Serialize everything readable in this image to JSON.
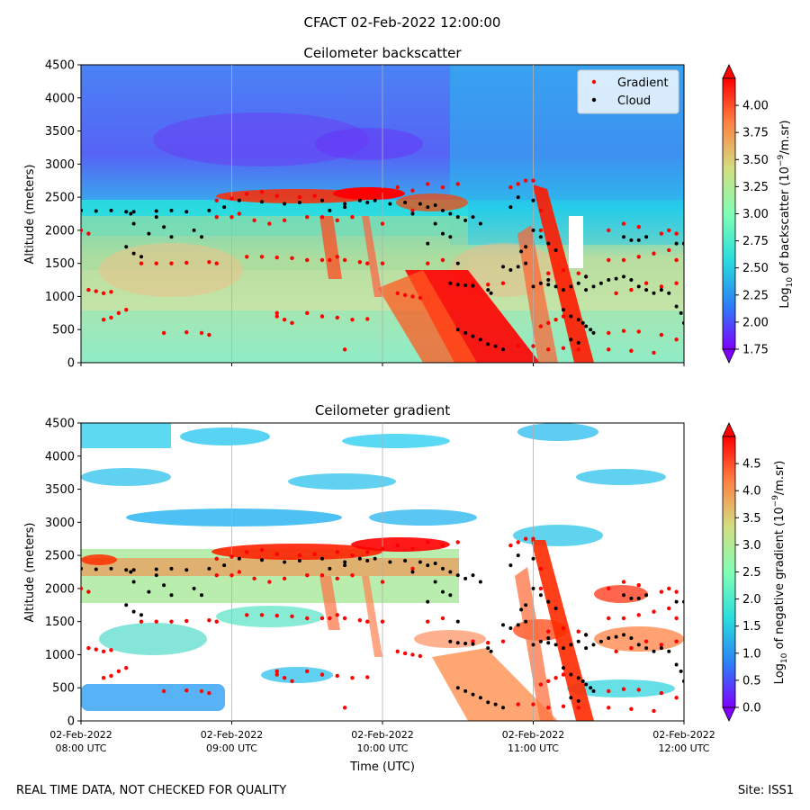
{
  "suptitle": "CFACT 02-Feb-2022 12:00:00",
  "footer_left": "REAL TIME DATA, NOT CHECKED FOR QUALITY",
  "footer_right": "Site: ISS1",
  "time_axis": {
    "label": "Time (UTC)",
    "range_hours": [
      8.0,
      12.0
    ],
    "ticks": [
      {
        "hours": 8,
        "date": "02-Feb-2022",
        "time": "08:00 UTC"
      },
      {
        "hours": 9,
        "date": "02-Feb-2022",
        "time": "09:00 UTC"
      },
      {
        "hours": 10,
        "date": "02-Feb-2022",
        "time": "10:00 UTC"
      },
      {
        "hours": 11,
        "date": "02-Feb-2022",
        "time": "11:00 UTC"
      },
      {
        "hours": 12,
        "date": "02-Feb-2022",
        "time": "12:00 UTC"
      }
    ]
  },
  "chart_data": [
    {
      "type": "heatmap",
      "title": "Ceilometer backscatter",
      "ylabel": "Altitude (meters)",
      "ylim": [
        0,
        4500
      ],
      "yticks": [
        0,
        500,
        1000,
        1500,
        2000,
        2500,
        3000,
        3500,
        4000,
        4500
      ],
      "colorbar": {
        "label": "Log10 of backscatter (10^-9/m.sr)",
        "range": [
          1.75,
          4.25
        ],
        "ticks": [
          "1.75",
          "2.00",
          "2.25",
          "2.50",
          "2.75",
          "3.00",
          "3.25",
          "3.50",
          "3.75",
          "4.00"
        ],
        "tick_values": [
          1.75,
          2.0,
          2.25,
          2.5,
          2.75,
          3.0,
          3.25,
          3.5,
          3.75,
          4.0
        ]
      },
      "legend": {
        "placement": "top-right",
        "entries": [
          {
            "label": "Gradient",
            "color": "#ff0000"
          },
          {
            "label": "Cloud",
            "color": "#000000"
          }
        ]
      }
    },
    {
      "type": "heatmap",
      "title": "Ceilometer gradient",
      "ylabel": "Altitude (meters)",
      "ylim": [
        0,
        4500
      ],
      "yticks": [
        0,
        500,
        1000,
        1500,
        2000,
        2500,
        3000,
        3500,
        4000,
        4500
      ],
      "colorbar": {
        "label": "Log10 of negative gradient (10^-9/m.sr)",
        "range": [
          0,
          5.0
        ],
        "ticks": [
          "0.0",
          "0.5",
          "1.0",
          "1.5",
          "2.0",
          "2.5",
          "3.0",
          "3.5",
          "4.0",
          "4.5"
        ],
        "tick_values": [
          0,
          0.5,
          1.0,
          1.5,
          2.0,
          2.5,
          3.0,
          3.5,
          4.0,
          4.5
        ]
      }
    }
  ],
  "series": {
    "cloud": [
      [
        8.0,
        2300
      ],
      [
        8.1,
        2290
      ],
      [
        8.2,
        2300
      ],
      [
        8.3,
        2280
      ],
      [
        8.33,
        2250
      ],
      [
        8.35,
        2100
      ],
      [
        8.3,
        1750
      ],
      [
        8.35,
        1650
      ],
      [
        8.4,
        1600
      ],
      [
        8.35,
        2280
      ],
      [
        8.5,
        2290
      ],
      [
        8.6,
        2300
      ],
      [
        8.7,
        2280
      ],
      [
        8.55,
        2050
      ],
      [
        8.6,
        1900
      ],
      [
        8.5,
        2200
      ],
      [
        8.45,
        1950
      ],
      [
        8.75,
        2000
      ],
      [
        8.8,
        1900
      ],
      [
        8.85,
        2300
      ],
      [
        8.95,
        2350
      ],
      [
        9.05,
        2450
      ],
      [
        9.2,
        2430
      ],
      [
        9.35,
        2400
      ],
      [
        9.45,
        2420
      ],
      [
        9.6,
        2450
      ],
      [
        9.75,
        2400
      ],
      [
        9.9,
        2420
      ],
      [
        9.65,
        2300
      ],
      [
        9.75,
        2350
      ],
      [
        9.85,
        2450
      ],
      [
        9.95,
        2450
      ],
      [
        10.05,
        2400
      ],
      [
        10.15,
        2420
      ],
      [
        10.25,
        2400
      ],
      [
        10.35,
        2380
      ],
      [
        10.2,
        2250
      ],
      [
        10.3,
        2350
      ],
      [
        10.35,
        2100
      ],
      [
        10.4,
        1950
      ],
      [
        10.3,
        1800
      ],
      [
        10.45,
        1900
      ],
      [
        10.5,
        1500
      ],
      [
        10.6,
        2200
      ],
      [
        10.65,
        2100
      ],
      [
        10.4,
        2300
      ],
      [
        10.45,
        2250
      ],
      [
        10.5,
        2200
      ],
      [
        10.55,
        2150
      ],
      [
        10.45,
        1200
      ],
      [
        10.5,
        1180
      ],
      [
        10.55,
        1170
      ],
      [
        10.6,
        1160
      ],
      [
        10.7,
        1100
      ],
      [
        10.72,
        1050
      ],
      [
        10.8,
        1450
      ],
      [
        10.85,
        1400
      ],
      [
        10.9,
        1450
      ],
      [
        10.95,
        1500
      ],
      [
        11.0,
        1150
      ],
      [
        11.05,
        1200
      ],
      [
        11.1,
        1250
      ],
      [
        11.1,
        1180
      ],
      [
        11.15,
        1150
      ],
      [
        10.85,
        2350
      ],
      [
        10.9,
        2500
      ],
      [
        11.0,
        2450
      ],
      [
        11.0,
        2000
      ],
      [
        11.05,
        1900
      ],
      [
        11.1,
        1800
      ],
      [
        11.15,
        1700
      ],
      [
        10.92,
        1680
      ],
      [
        10.95,
        1750
      ],
      [
        11.2,
        1100
      ],
      [
        11.25,
        1150
      ],
      [
        11.3,
        1200
      ],
      [
        11.35,
        1100
      ],
      [
        11.4,
        1150
      ],
      [
        11.45,
        1200
      ],
      [
        11.2,
        800
      ],
      [
        11.25,
        700
      ],
      [
        11.3,
        650
      ],
      [
        11.33,
        600
      ],
      [
        11.35,
        550
      ],
      [
        11.38,
        500
      ],
      [
        11.4,
        450
      ],
      [
        11.35,
        1300
      ],
      [
        11.5,
        1250
      ],
      [
        11.55,
        1270
      ],
      [
        11.6,
        1300
      ],
      [
        11.65,
        1250
      ],
      [
        11.7,
        1150
      ],
      [
        11.75,
        1100
      ],
      [
        11.8,
        1050
      ],
      [
        11.85,
        1100
      ],
      [
        11.9,
        1050
      ],
      [
        11.6,
        1900
      ],
      [
        11.65,
        1850
      ],
      [
        11.7,
        1850
      ],
      [
        11.75,
        1900
      ],
      [
        11.95,
        1800
      ],
      [
        12.0,
        1800
      ],
      [
        11.95,
        850
      ],
      [
        11.98,
        750
      ],
      [
        12.0,
        600
      ],
      [
        10.5,
        500
      ],
      [
        10.55,
        450
      ],
      [
        10.6,
        400
      ],
      [
        10.65,
        350
      ],
      [
        10.7,
        280
      ],
      [
        10.75,
        250
      ],
      [
        10.8,
        200
      ],
      [
        11.25,
        350
      ],
      [
        11.3,
        300
      ]
    ],
    "gradient": [
      [
        8.0,
        2000
      ],
      [
        8.05,
        1950
      ],
      [
        8.05,
        1100
      ],
      [
        8.1,
        1080
      ],
      [
        8.15,
        1050
      ],
      [
        8.2,
        1070
      ],
      [
        8.15,
        650
      ],
      [
        8.2,
        680
      ],
      [
        8.25,
        750
      ],
      [
        8.3,
        800
      ],
      [
        8.4,
        1500
      ],
      [
        8.5,
        1500
      ],
      [
        8.6,
        1500
      ],
      [
        8.7,
        1510
      ],
      [
        8.85,
        1520
      ],
      [
        8.9,
        1500
      ],
      [
        8.55,
        450
      ],
      [
        8.7,
        460
      ],
      [
        8.8,
        450
      ],
      [
        8.85,
        420
      ],
      [
        8.9,
        2200
      ],
      [
        9.0,
        2200
      ],
      [
        9.05,
        2250
      ],
      [
        9.15,
        2150
      ],
      [
        9.25,
        2100
      ],
      [
        9.35,
        2150
      ],
      [
        9.5,
        2200
      ],
      [
        9.6,
        2200
      ],
      [
        9.7,
        2150
      ],
      [
        9.8,
        2200
      ],
      [
        9.1,
        1600
      ],
      [
        9.2,
        1600
      ],
      [
        9.3,
        1590
      ],
      [
        9.4,
        1580
      ],
      [
        9.5,
        1550
      ],
      [
        9.6,
        1550
      ],
      [
        9.65,
        1550
      ],
      [
        9.7,
        1600
      ],
      [
        9.7,
        2550
      ],
      [
        9.8,
        2500
      ],
      [
        9.9,
        2550
      ],
      [
        10.0,
        2600
      ],
      [
        10.1,
        2650
      ],
      [
        10.2,
        2600
      ],
      [
        10.3,
        2700
      ],
      [
        10.4,
        2650
      ],
      [
        10.5,
        2700
      ],
      [
        9.1,
        2550
      ],
      [
        9.2,
        2580
      ],
      [
        9.3,
        2520
      ],
      [
        9.45,
        2500
      ],
      [
        9.55,
        2520
      ],
      [
        8.9,
        2450
      ],
      [
        9.0,
        2480
      ],
      [
        9.75,
        1550
      ],
      [
        9.85,
        1520
      ],
      [
        9.9,
        1500
      ],
      [
        10.0,
        1500
      ],
      [
        10.1,
        1050
      ],
      [
        10.15,
        1020
      ],
      [
        10.2,
        1000
      ],
      [
        10.25,
        980
      ],
      [
        9.3,
        700
      ],
      [
        9.35,
        650
      ],
      [
        9.4,
        600
      ],
      [
        9.3,
        750
      ],
      [
        9.5,
        750
      ],
      [
        9.6,
        700
      ],
      [
        9.7,
        680
      ],
      [
        9.8,
        650
      ],
      [
        9.9,
        660
      ],
      [
        9.75,
        200
      ],
      [
        10.0,
        2100
      ],
      [
        10.2,
        2300
      ],
      [
        10.3,
        1500
      ],
      [
        10.4,
        1550
      ],
      [
        10.6,
        1200
      ],
      [
        10.7,
        1180
      ],
      [
        10.8,
        1200
      ],
      [
        10.85,
        2650
      ],
      [
        10.9,
        2700
      ],
      [
        10.95,
        2750
      ],
      [
        11.0,
        2750
      ],
      [
        11.05,
        2300
      ],
      [
        11.05,
        2000
      ],
      [
        11.1,
        1350
      ],
      [
        11.2,
        1400
      ],
      [
        11.3,
        1350
      ],
      [
        11.35,
        1300
      ],
      [
        11.1,
        600
      ],
      [
        11.15,
        650
      ],
      [
        11.2,
        700
      ],
      [
        11.05,
        550
      ],
      [
        10.9,
        250
      ],
      [
        11.0,
        250
      ],
      [
        11.1,
        200
      ],
      [
        11.2,
        220
      ],
      [
        11.3,
        200
      ],
      [
        11.5,
        200
      ],
      [
        11.65,
        180
      ],
      [
        11.8,
        150
      ],
      [
        11.5,
        1550
      ],
      [
        11.6,
        1550
      ],
      [
        11.7,
        1600
      ],
      [
        11.8,
        1650
      ],
      [
        11.9,
        1700
      ],
      [
        11.95,
        1550
      ],
      [
        11.5,
        2000
      ],
      [
        11.6,
        2100
      ],
      [
        11.7,
        2050
      ],
      [
        11.55,
        1050
      ],
      [
        11.65,
        1100
      ],
      [
        11.75,
        1200
      ],
      [
        11.85,
        1150
      ],
      [
        11.95,
        1200
      ],
      [
        11.5,
        450
      ],
      [
        11.6,
        480
      ],
      [
        11.7,
        470
      ],
      [
        11.85,
        420
      ],
      [
        11.95,
        350
      ],
      [
        11.85,
        1950
      ],
      [
        11.9,
        2000
      ],
      [
        11.95,
        1950
      ]
    ]
  },
  "colors": {
    "colorbar_stops": [
      "#7f00ff",
      "#2b7ef6",
      "#2adddd",
      "#80ffb4",
      "#d4dd80",
      "#ff8040",
      "#ff0000"
    ],
    "gradient_marker": "#ff0000",
    "cloud_marker": "#000000"
  }
}
